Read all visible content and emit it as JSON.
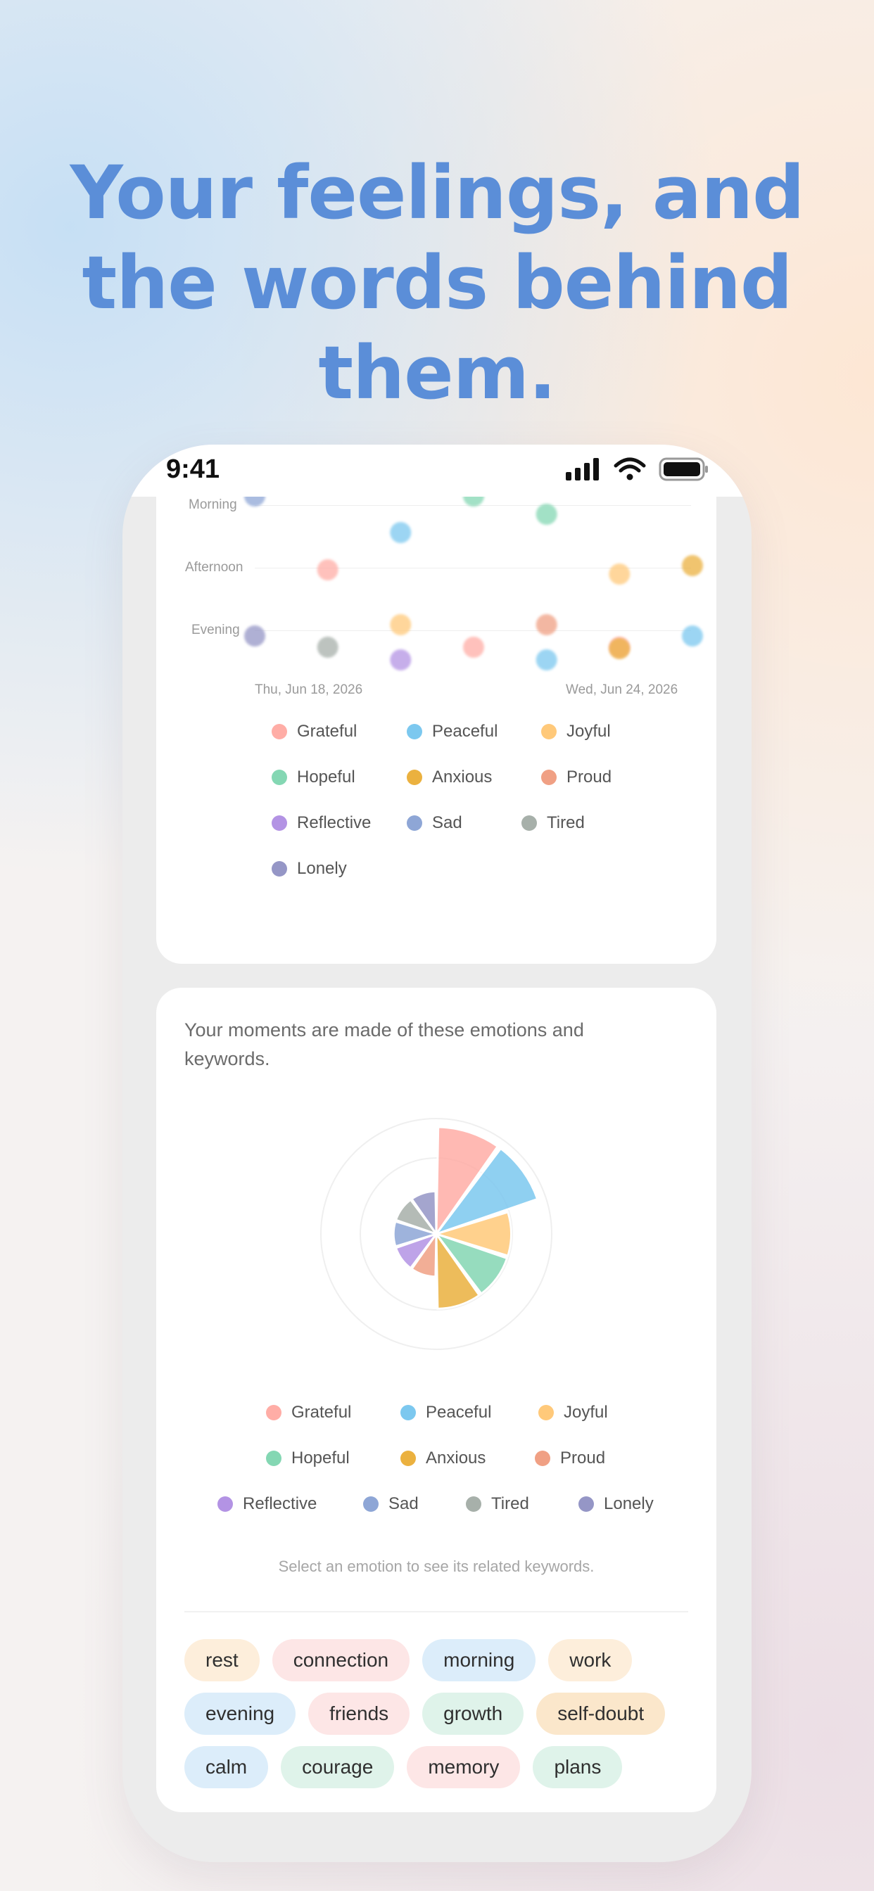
{
  "headline": {
    "lines": [
      "Your feelings, and",
      "the words behind",
      "them."
    ]
  },
  "status_bar": {
    "time": "9:41"
  },
  "time_chart": {
    "y_labels": [
      "Morning",
      "Afternoon",
      "Evening"
    ],
    "x_labels": [
      "Thu, Jun 18, 2026",
      "Wed, Jun 24, 2026"
    ]
  },
  "emotions": [
    {
      "name": "Grateful",
      "color": "#ffada6"
    },
    {
      "name": "Peaceful",
      "color": "#7cc8ef"
    },
    {
      "name": "Joyful",
      "color": "#ffc97a"
    },
    {
      "name": "Hopeful",
      "color": "#84d7b3"
    },
    {
      "name": "Anxious",
      "color": "#ebb13f"
    },
    {
      "name": "Proud",
      "color": "#f0a084"
    },
    {
      "name": "Reflective",
      "color": "#b393e4"
    },
    {
      "name": "Sad",
      "color": "#8ea6d6"
    },
    {
      "name": "Tired",
      "color": "#a7b0aa"
    },
    {
      "name": "Lonely",
      "color": "#9596c6"
    }
  ],
  "chart_data": [
    {
      "type": "scatter",
      "title": "",
      "x_range": [
        "Thu, Jun 18, 2026",
        "Wed, Jun 24, 2026"
      ],
      "y_categories": [
        "Morning",
        "Afternoon",
        "Evening"
      ],
      "points": [
        {
          "x": "Thu, Jun 18, 2026",
          "y": "Morning",
          "emotion": "Sad"
        },
        {
          "x": "Fri, Jun 19, 2026",
          "y": "Afternoon",
          "emotion": "Grateful"
        },
        {
          "x": "Sat, Jun 20, 2026",
          "y": "Morning",
          "emotion": "Peaceful"
        },
        {
          "x": "Sun, Jun 21, 2026",
          "y": "Morning",
          "emotion": "Hopeful"
        },
        {
          "x": "Mon, Jun 22, 2026",
          "y": "Morning",
          "emotion": "Hopeful"
        },
        {
          "x": "Tue, Jun 23, 2026",
          "y": "Afternoon",
          "emotion": "Joyful"
        },
        {
          "x": "Wed, Jun 24, 2026",
          "y": "Afternoon",
          "emotion": "Anxious"
        },
        {
          "x": "Thu, Jun 18, 2026",
          "y": "Evening",
          "emotion": "Lonely"
        },
        {
          "x": "Fri, Jun 19, 2026",
          "y": "Evening",
          "emotion": "Tired"
        },
        {
          "x": "Sat, Jun 20, 2026",
          "y": "Evening",
          "emotion": "Joyful"
        },
        {
          "x": "Sat, Jun 20, 2026",
          "y": "Evening",
          "emotion": "Reflective"
        },
        {
          "x": "Sun, Jun 21, 2026",
          "y": "Evening",
          "emotion": "Grateful"
        },
        {
          "x": "Mon, Jun 22, 2026",
          "y": "Evening",
          "emotion": "Proud"
        },
        {
          "x": "Mon, Jun 22, 2026",
          "y": "Evening",
          "emotion": "Peaceful"
        },
        {
          "x": "Tue, Jun 23, 2026",
          "y": "Evening",
          "emotion": "Grateful"
        },
        {
          "x": "Tue, Jun 23, 2026",
          "y": "Evening",
          "emotion": "Anxious"
        },
        {
          "x": "Wed, Jun 24, 2026",
          "y": "Evening",
          "emotion": "Peaceful"
        }
      ]
    },
    {
      "type": "pie",
      "title": "",
      "categories": [
        "Grateful",
        "Peaceful",
        "Joyful",
        "Hopeful",
        "Anxious",
        "Proud",
        "Reflective",
        "Sad",
        "Tired",
        "Lonely"
      ],
      "values": [
        10,
        10,
        7,
        7,
        7,
        4,
        4,
        4,
        4,
        4
      ]
    }
  ],
  "composition": {
    "description": "Your moments are made of these emotions and keywords.",
    "hint": "Select an emotion to see its related keywords."
  },
  "keywords": [
    {
      "label": "rest",
      "bg": "#fdeedb"
    },
    {
      "label": "connection",
      "bg": "#fde6e6"
    },
    {
      "label": "morning",
      "bg": "#dcedfa"
    },
    {
      "label": "work",
      "bg": "#fdeedb"
    },
    {
      "label": "evening",
      "bg": "#dcedfa"
    },
    {
      "label": "friends",
      "bg": "#fde6e6"
    },
    {
      "label": "growth",
      "bg": "#dff3ea"
    },
    {
      "label": "self-doubt",
      "bg": "#fbe7cb"
    },
    {
      "label": "calm",
      "bg": "#dcedfa"
    },
    {
      "label": "courage",
      "bg": "#dff3ea"
    },
    {
      "label": "memory",
      "bg": "#fde6e6"
    },
    {
      "label": "plans",
      "bg": "#dff3ea"
    }
  ]
}
